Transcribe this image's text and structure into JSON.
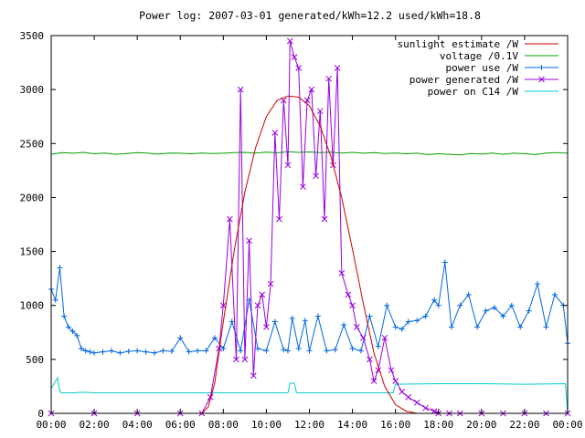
{
  "chart_data": {
    "type": "line",
    "title": "Power log: 2007-03-01 generated/kWh=12.2 used/kWh=18.8",
    "xlabel": "",
    "ylabel": "",
    "x_ticks": [
      "00:00",
      "02:00",
      "04:00",
      "06:00",
      "08:00",
      "10:00",
      "12:00",
      "14:00",
      "16:00",
      "18:00",
      "20:00",
      "22:00",
      "00:00"
    ],
    "y_ticks": [
      "0",
      "500",
      "1000",
      "1500",
      "2000",
      "2500",
      "3000",
      "3500"
    ],
    "xlim_hours": [
      0,
      24
    ],
    "ylim": [
      0,
      3500
    ],
    "grid": false,
    "legend_position": "top-right",
    "series": [
      {
        "name": "sunlight estimate /W",
        "color": "#cc0000",
        "marker": "none",
        "x": [
          0,
          7.0,
          7.3,
          7.6,
          8.0,
          8.5,
          9.0,
          9.5,
          10.0,
          10.5,
          11.0,
          11.5,
          12.0,
          12.5,
          13.0,
          13.5,
          14.0,
          14.5,
          15.0,
          15.5,
          16.0,
          16.5,
          17.0,
          17.3,
          24
        ],
        "values": [
          0,
          0,
          60,
          280,
          850,
          1500,
          2050,
          2460,
          2750,
          2900,
          2940,
          2930,
          2850,
          2660,
          2380,
          2000,
          1520,
          1020,
          560,
          250,
          80,
          20,
          0,
          0,
          0
        ]
      },
      {
        "name": "voltage /0.1V",
        "color": "#00a000",
        "marker": "none",
        "x": [
          0,
          0.5,
          1,
          1.5,
          2,
          2.5,
          3,
          3.5,
          4,
          4.5,
          5,
          5.5,
          6,
          6.5,
          7,
          7.5,
          8,
          8.5,
          9,
          9.5,
          10,
          10.5,
          11,
          11.5,
          12,
          12.5,
          13,
          13.5,
          14,
          14.5,
          15,
          15.5,
          16,
          16.5,
          17,
          17.5,
          18,
          18.5,
          19,
          19.5,
          20,
          20.5,
          21,
          21.5,
          22,
          22.5,
          23,
          23.5,
          24
        ],
        "values": [
          2400,
          2415,
          2410,
          2418,
          2405,
          2412,
          2400,
          2408,
          2415,
          2410,
          2402,
          2412,
          2410,
          2405,
          2412,
          2408,
          2410,
          2415,
          2418,
          2412,
          2420,
          2414,
          2425,
          2418,
          2422,
          2415,
          2420,
          2412,
          2418,
          2410,
          2415,
          2408,
          2412,
          2405,
          2410,
          2398,
          2405,
          2400,
          2395,
          2408,
          2402,
          2412,
          2400,
          2410,
          2405,
          2398,
          2412,
          2415,
          2410
        ]
      },
      {
        "name": "power use /W",
        "color": "#0066dd",
        "marker": "+",
        "x": [
          0,
          0.2,
          0.4,
          0.6,
          0.8,
          1.0,
          1.2,
          1.4,
          1.6,
          1.8,
          2.0,
          2.4,
          2.8,
          3.2,
          3.6,
          4.0,
          4.4,
          4.8,
          5.2,
          5.6,
          6.0,
          6.4,
          6.8,
          7.2,
          7.6,
          8.0,
          8.4,
          8.8,
          9.2,
          9.6,
          10.0,
          10.4,
          10.8,
          11.0,
          11.2,
          11.5,
          11.8,
          12.0,
          12.4,
          12.8,
          13.2,
          13.6,
          14.0,
          14.4,
          14.8,
          15.2,
          15.6,
          16.0,
          16.3,
          16.6,
          17.0,
          17.4,
          17.8,
          18.0,
          18.3,
          18.6,
          19.0,
          19.4,
          19.8,
          20.2,
          20.6,
          21.0,
          21.4,
          21.8,
          22.2,
          22.6,
          23.0,
          23.4,
          23.8,
          24
        ],
        "values": [
          1150,
          1050,
          1350,
          900,
          800,
          760,
          720,
          600,
          580,
          570,
          560,
          570,
          580,
          560,
          575,
          580,
          570,
          560,
          580,
          575,
          700,
          570,
          580,
          580,
          700,
          600,
          850,
          580,
          1050,
          600,
          580,
          850,
          590,
          580,
          880,
          600,
          860,
          580,
          900,
          580,
          590,
          820,
          600,
          580,
          900,
          620,
          1000,
          800,
          780,
          850,
          860,
          900,
          1050,
          1000,
          1400,
          800,
          1000,
          1100,
          800,
          950,
          980,
          900,
          1000,
          800,
          950,
          1200,
          800,
          1100,
          1000,
          650
        ]
      },
      {
        "name": "power generated /W",
        "color": "#9900dd",
        "marker": "x",
        "x": [
          0,
          2,
          4,
          6,
          7.0,
          7.4,
          7.8,
          8.0,
          8.3,
          8.6,
          8.8,
          9.0,
          9.2,
          9.4,
          9.6,
          9.8,
          10.0,
          10.2,
          10.4,
          10.6,
          10.8,
          11.0,
          11.1,
          11.3,
          11.5,
          11.7,
          11.9,
          12.1,
          12.3,
          12.5,
          12.7,
          12.9,
          13.1,
          13.3,
          13.5,
          13.8,
          14.0,
          14.2,
          14.5,
          14.8,
          15.0,
          15.2,
          15.5,
          15.8,
          16.0,
          16.3,
          16.6,
          17.0,
          17.4,
          17.8,
          18.0,
          18.5,
          19,
          20,
          21,
          22,
          23,
          24
        ],
        "values": [
          0,
          0,
          0,
          0,
          0,
          150,
          600,
          1000,
          1800,
          500,
          3000,
          500,
          1600,
          350,
          1000,
          1100,
          800,
          1200,
          2600,
          1800,
          2900,
          2300,
          3450,
          3300,
          3200,
          2100,
          2900,
          3000,
          2200,
          2800,
          1800,
          3100,
          2300,
          3200,
          1300,
          1100,
          1000,
          800,
          700,
          500,
          300,
          400,
          700,
          400,
          300,
          200,
          150,
          100,
          50,
          20,
          0,
          0,
          0,
          0,
          0,
          0,
          0,
          0
        ]
      },
      {
        "name": "power on C14 /W",
        "color": "#00cccc",
        "marker": "none",
        "x": [
          0,
          0.3,
          0.4,
          0.5,
          1.0,
          1.5,
          2,
          4,
          6,
          8,
          10,
          11.0,
          11.1,
          11.3,
          11.4,
          12,
          14,
          15.9,
          16.0,
          18,
          20,
          22,
          23.9,
          24
        ],
        "values": [
          230,
          330,
          200,
          190,
          190,
          195,
          190,
          190,
          190,
          190,
          190,
          190,
          280,
          280,
          190,
          190,
          190,
          190,
          270,
          275,
          275,
          270,
          275,
          0
        ]
      }
    ]
  }
}
